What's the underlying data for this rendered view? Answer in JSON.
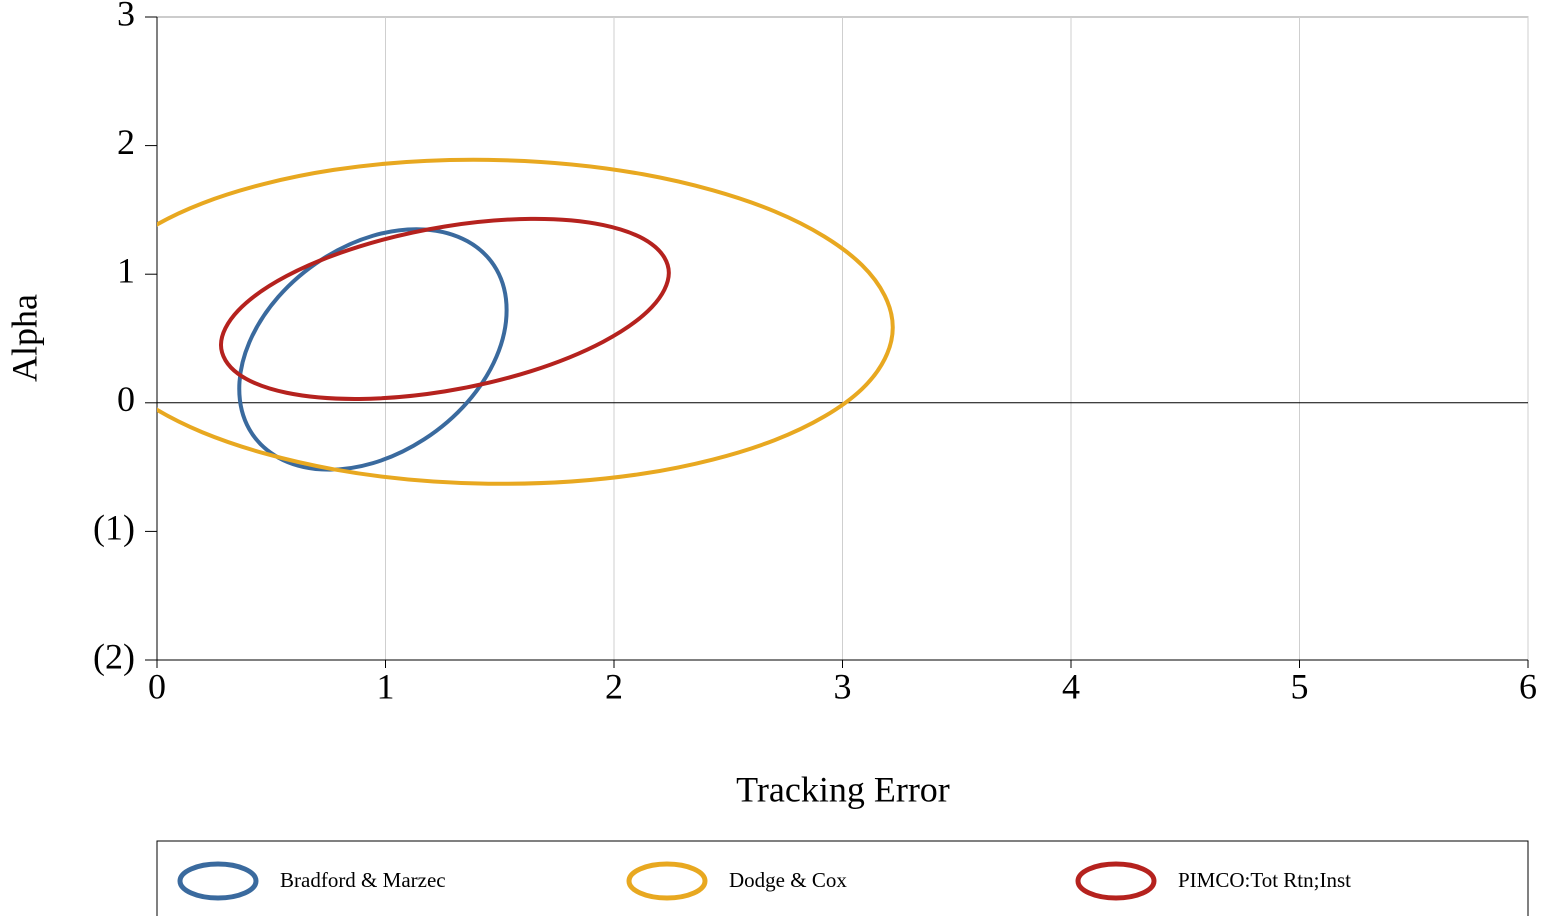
{
  "chart_data": {
    "type": "line",
    "x_label": "Tracking Error",
    "y_label": "Alpha",
    "xlim": [
      0,
      6
    ],
    "xticks": [
      0,
      1,
      2,
      3,
      4,
      5,
      6
    ],
    "ylim": [
      -2,
      3
    ],
    "yticks": [
      {
        "value": -2,
        "label": "(2)"
      },
      {
        "value": -1,
        "label": "(1)"
      },
      0,
      1,
      2,
      3
    ],
    "negative_tick_color": "#ff0000",
    "grid": true,
    "zero_line": true,
    "closed": true,
    "legend": "bottom",
    "series": [
      {
        "name": "Bradford & Marzec",
        "color": "#3a6a9e",
        "x": [
          1.53,
          1.486,
          1.359,
          1.169,
          0.945,
          0.721,
          0.531,
          0.404,
          0.36,
          0.404,
          0.531,
          0.721,
          0.945,
          1.169,
          1.359,
          1.486
        ],
        "values": [
          0.721,
          1.036,
          1.256,
          1.348,
          1.299,
          1.114,
          0.824,
          0.47,
          0.109,
          -0.206,
          -0.426,
          -0.518,
          -0.469,
          -0.284,
          0.006,
          0.36
        ]
      },
      {
        "name": "Dodge & Cox",
        "color": "#e8a820",
        "x": [
          3.22,
          3.085,
          2.702,
          2.127,
          1.45,
          0.773,
          0.198,
          -0.185,
          -0.32,
          -0.185,
          0.198,
          0.773,
          1.45,
          2.127,
          2.702,
          3.085
        ],
        "values": [
          0.586,
          1.071,
          1.489,
          1.777,
          1.889,
          1.811,
          1.551,
          1.153,
          0.674,
          0.189,
          -0.229,
          -0.517,
          -0.629,
          -0.551,
          -0.291,
          0.107
        ]
      },
      {
        "name": "PIMCO:Tot Rtn;Inst",
        "color": "#b5221e",
        "x": [
          2.24,
          2.165,
          1.953,
          1.635,
          1.26,
          0.885,
          0.567,
          0.355,
          0.28,
          0.355,
          0.567,
          0.885,
          1.26,
          1.635,
          1.953,
          2.165
        ],
        "values": [
          1.01,
          1.234,
          1.382,
          1.43,
          1.371,
          1.215,
          0.986,
          0.717,
          0.45,
          0.226,
          0.078,
          0.03,
          0.089,
          0.245,
          0.475,
          0.743
        ]
      }
    ]
  }
}
